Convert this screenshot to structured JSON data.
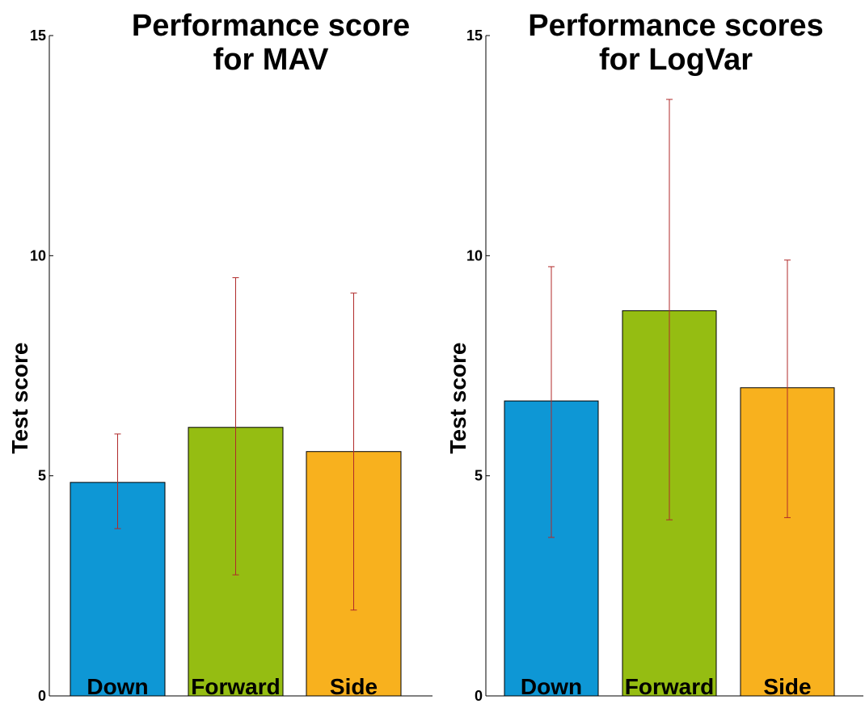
{
  "chart_data": [
    {
      "type": "bar",
      "title_lines": [
        "Performance score",
        "for MAV"
      ],
      "xlabel": "",
      "ylabel": "Test score",
      "ylim": [
        0,
        15
      ],
      "yticks": [
        0,
        5,
        10,
        15
      ],
      "categories": [
        "Down",
        "Forward",
        "Side"
      ],
      "values": [
        4.85,
        6.1,
        5.55
      ],
      "error_low": [
        3.8,
        2.75,
        1.95
      ],
      "error_high": [
        5.95,
        9.5,
        9.15
      ],
      "colors": [
        "#0e97d5",
        "#95bd12",
        "#f8b11e"
      ],
      "error_color": "#b02a2a"
    },
    {
      "type": "bar",
      "title_lines": [
        "Performance scores",
        "for LogVar"
      ],
      "xlabel": "",
      "ylabel": "Test score",
      "ylim": [
        0,
        15
      ],
      "yticks": [
        0,
        5,
        10,
        15
      ],
      "categories": [
        "Down",
        "Forward",
        "Side"
      ],
      "values": [
        6.7,
        8.75,
        7.0
      ],
      "error_low": [
        3.6,
        4.0,
        4.05
      ],
      "error_high": [
        9.75,
        13.55,
        9.9
      ],
      "colors": [
        "#0e97d5",
        "#95bd12",
        "#f8b11e"
      ],
      "error_color": "#b02a2a"
    }
  ]
}
